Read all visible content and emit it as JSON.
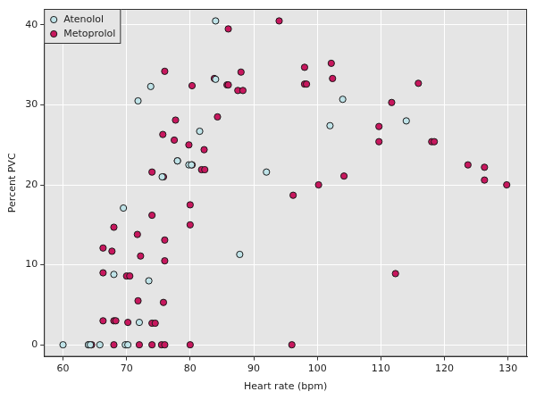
{
  "chart_data": {
    "type": "scatter",
    "x_label": "Heart rate (bpm)",
    "y_label": "Percent PVC",
    "xlim": [
      57,
      133
    ],
    "ylim": [
      -1.5,
      42
    ],
    "xticks": [
      60,
      70,
      80,
      90,
      100,
      110,
      120,
      130
    ],
    "yticks": [
      0,
      10,
      20,
      30,
      40
    ],
    "grid": true,
    "legend": "upper left",
    "series": [
      {
        "name": "Atenolol",
        "color": "#bfe3e8",
        "marker": "circle",
        "x": [
          60,
          64,
          64.3,
          65.8,
          69.8,
          70.2,
          68,
          69.5,
          71.8,
          73.8,
          72,
          73.5,
          75.6,
          78,
          79.8,
          80.2,
          81.5,
          84,
          84,
          87.8,
          92,
          102,
          104,
          114
        ],
        "values": [
          0,
          0,
          0,
          0,
          0,
          0,
          8.8,
          17.1,
          30.5,
          32.3,
          2.8,
          8,
          21,
          23,
          22.5,
          22.5,
          26.7,
          40.5,
          33.2,
          11.3,
          21.6,
          27.4,
          30.7,
          28
        ]
      },
      {
        "name": "Metoprolol",
        "color": "#c8175e",
        "marker": "circle",
        "x": [
          64,
          64.5,
          68,
          70,
          72,
          74,
          75.5,
          76,
          80,
          96,
          66.3,
          68,
          68.3,
          70.2,
          74,
          74.5,
          75.8,
          71.8,
          66.3,
          70,
          70.5,
          72.2,
          67.7,
          66.3,
          68,
          71.7,
          76,
          76,
          74,
          80,
          80,
          74,
          75.8,
          75.7,
          77.5,
          77.7,
          76,
          79.8,
          80.3,
          81.8,
          82.3,
          82.2,
          80.3,
          83.8,
          85.8,
          86,
          86,
          84.3,
          87.5,
          88.3,
          88,
          78,
          94,
          96.2,
          98,
          98.3,
          98,
          100.2,
          102.2,
          102.4,
          104.2,
          109.7,
          109.7,
          111.7,
          112.3,
          115.9,
          118,
          118.4,
          123.7,
          126.3,
          126.3,
          129.8
        ],
        "values": [
          0,
          0,
          0,
          0,
          0,
          0,
          0,
          0,
          0,
          0,
          3,
          3,
          3,
          2.8,
          2.7,
          2.7,
          5.3,
          5.5,
          9,
          8.6,
          8.6,
          11.1,
          11.7,
          12.1,
          14.7,
          13.8,
          13.1,
          10.5,
          16.2,
          15,
          17.5,
          21.6,
          21,
          26.3,
          25.6,
          28.1,
          34.2,
          25,
          22.5,
          21.9,
          21.9,
          24.4,
          32.4,
          33.3,
          32.5,
          32.5,
          39.5,
          28.5,
          31.8,
          31.8,
          34.1,
          23,
          40.5,
          18.7,
          32.6,
          32.6,
          34.7,
          20,
          35.2,
          33.3,
          21.1,
          25.4,
          27.3,
          30.3,
          8.9,
          32.7,
          25.4,
          25.4,
          22.5,
          22.2,
          20.6,
          20
        ]
      }
    ]
  }
}
